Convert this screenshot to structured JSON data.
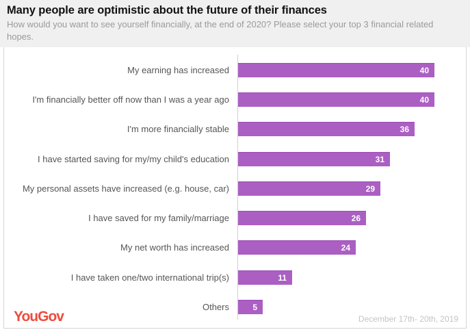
{
  "header": {
    "title": "Many people are optimistic about the future of their finances",
    "subtitle": "How would you want to see yourself financially, at the end of 2020? Please select your top 3 financial related hopes."
  },
  "footer": {
    "brand": "YouGov",
    "date": "December 17th- 20th, 2019"
  },
  "colors": {
    "bar": "#ab5fc3",
    "brand": "#ee4b3d",
    "header_bg": "#f0f0f0"
  },
  "chart_data": {
    "type": "bar",
    "orientation": "horizontal",
    "title": "Many people are optimistic about the future of their finances",
    "subtitle": "How would you want to see yourself financially, at the end of 2020? Please select your top 3 financial related hopes.",
    "categories": [
      "My earning has increased",
      "I'm financially better off now than I was a year ago",
      "I'm more financially stable",
      "I have started saving for my/my child's education",
      "My personal assets have increased (e.g. house, car)",
      "I have saved for my family/marriage",
      "My net worth has increased",
      "I have taken one/two international trip(s)",
      "Others"
    ],
    "values": [
      40,
      40,
      36,
      31,
      29,
      26,
      24,
      11,
      5
    ],
    "xlabel": "",
    "ylabel": "",
    "grid": false,
    "data_labels": true
  },
  "rows": [
    {
      "label": "My earning has increased",
      "value": "40"
    },
    {
      "label": "I'm financially better off now than I was a year ago",
      "value": "40"
    },
    {
      "label": "I'm more financially stable",
      "value": "36"
    },
    {
      "label": "I have started saving for my/my child's education",
      "value": "31"
    },
    {
      "label": "My personal assets have increased (e.g. house, car)",
      "value": "29"
    },
    {
      "label": "I have saved for my family/marriage",
      "value": "26"
    },
    {
      "label": "My net worth has increased",
      "value": "24"
    },
    {
      "label": "I have taken one/two international trip(s)",
      "value": "11"
    },
    {
      "label": "Others",
      "value": "5"
    }
  ]
}
